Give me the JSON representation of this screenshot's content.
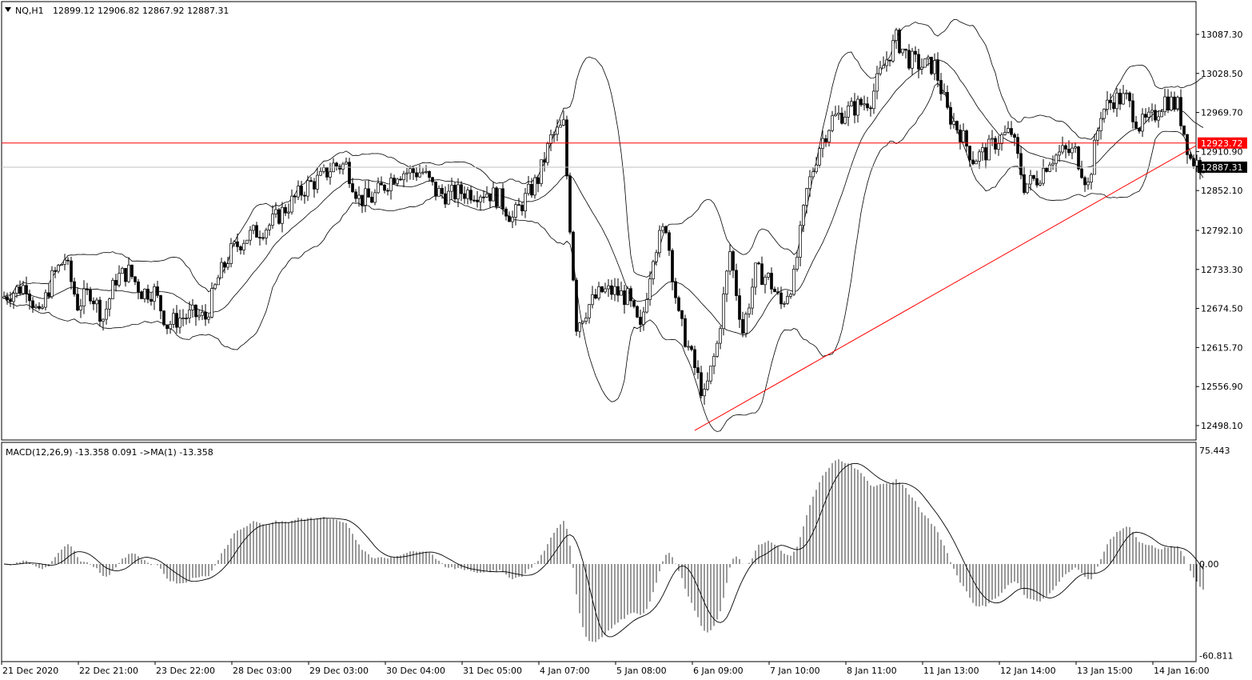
{
  "header": {
    "symbol": "NQ,H1",
    "ohlc": "12899.12 12906.82 12867.92 12887.31"
  },
  "macd_header": "MACD(12,26,9) -13.358 0.091  ->MA(1) -13.358",
  "colors": {
    "bull": "#000000",
    "bear": "#000000",
    "hline": "#ff0000",
    "trend": "#ff0000",
    "bid": "#c0c0c0",
    "price_tag": "#000000"
  },
  "chart_data": {
    "type": "candlestick",
    "symbol": "NQ",
    "timeframe": "H1",
    "ylim": [
      12470,
      13120
    ],
    "y_ticks": [
      "13087.30",
      "13028.50",
      "12969.70",
      "12910.90",
      "12852.10",
      "12792.10",
      "12733.30",
      "12674.50",
      "12615.70",
      "12556.90",
      "12498.10"
    ],
    "x_ticks": [
      "21 Dec 2020",
      "22 Dec 21:00",
      "23 Dec 22:00",
      "28 Dec 03:00",
      "29 Dec 03:00",
      "30 Dec 04:00",
      "31 Dec 05:00",
      "4 Jan 07:00",
      "5 Jan 08:00",
      "6 Jan 09:00",
      "7 Jan 10:00",
      "8 Jan 11:00",
      "11 Jan 13:00",
      "12 Jan 14:00",
      "13 Jan 15:00",
      "14 Jan 16:00"
    ],
    "bars_per_point": 4,
    "closes": [
      12690,
      12700,
      12710,
      12660,
      12720,
      12750,
      12680,
      12700,
      12660,
      12720,
      12730,
      12700,
      12700,
      12650,
      12660,
      12665,
      12660,
      12720,
      12760,
      12780,
      12790,
      12800,
      12820,
      12840,
      12860,
      12870,
      12890,
      12890,
      12840,
      12840,
      12860,
      12880,
      12880,
      12880,
      12850,
      12845,
      12850,
      12850,
      12850,
      12840,
      12810,
      12840,
      12870,
      12930,
      12950,
      12650,
      12680,
      12700,
      12700,
      12690,
      12640,
      12760,
      12800,
      12660,
      12600,
      12540,
      12620,
      12760,
      12640,
      12730,
      12720,
      12680,
      12720,
      12850,
      12920,
      12960,
      12970,
      12980,
      12990,
      13040,
      13080,
      13050,
      13040,
      13040,
      12970,
      12940,
      12900,
      12910,
      12930,
      12940,
      12860,
      12870,
      12900,
      12910,
      12910,
      12860,
      12970,
      12990,
      12990,
      12950,
      12960,
      12990,
      12980,
      12900,
      12887.31
    ],
    "indicators": {
      "bollinger": {
        "period": 20,
        "deviation": 2
      },
      "macd": {
        "fast": 12,
        "slow": 26,
        "signal": 9
      }
    },
    "horizontal_line": {
      "price": 12923.72,
      "label": "12923.72"
    },
    "last_price": {
      "price": 12887.31,
      "label": "12887.31"
    },
    "trendline": {
      "start_price": 12490.8,
      "end_price": 12919.8
    },
    "macd_ylim": [
      -60.811,
      75.443
    ],
    "macd_ticks": [
      "75.443",
      "0.00",
      "-60.811"
    ]
  }
}
